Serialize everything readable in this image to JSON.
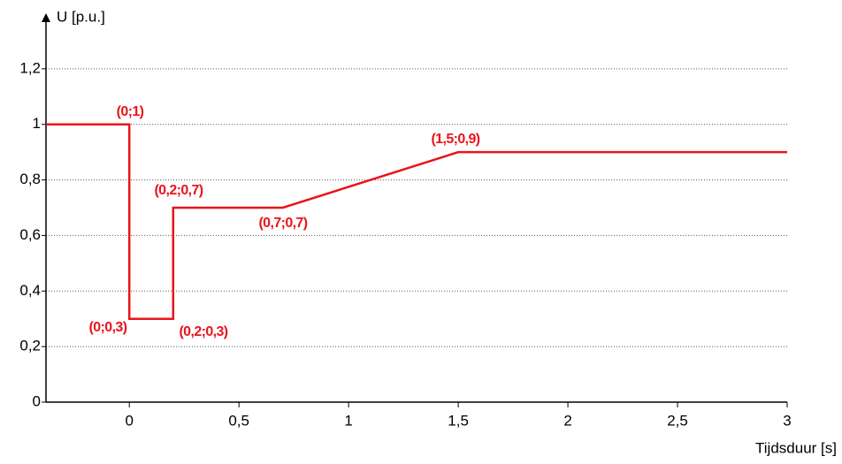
{
  "chart_data": {
    "type": "line",
    "y_label": "U [p.u.]",
    "x_label": "Tijdsduur [s]",
    "x": [
      -0.38,
      0,
      0,
      0.2,
      0.2,
      0.7,
      1.5,
      3
    ],
    "values": [
      1,
      1,
      0.3,
      0.3,
      0.7,
      0.7,
      0.9,
      0.9
    ],
    "color": "#e8141c",
    "xlim": [
      -0.38,
      3
    ],
    "ylim": [
      0,
      1.4
    ],
    "xticks": [
      0,
      {
        "value": 0.5,
        "label": "0,5"
      },
      1,
      {
        "value": 1.5,
        "label": "1,5"
      },
      2,
      {
        "value": 2.5,
        "label": "2,5"
      },
      3
    ],
    "yticks": [
      0,
      {
        "value": 0.2,
        "label": "0,2"
      },
      {
        "value": 0.4,
        "label": "0,4"
      },
      {
        "value": 0.6,
        "label": "0,6"
      },
      {
        "value": 0.8,
        "label": "0,8"
      },
      1,
      {
        "value": 1.2,
        "label": "1,2"
      }
    ],
    "grid": true,
    "annotations": [
      "(0;1)",
      "(0,2;0,7)",
      "(0,7;0,7)",
      "(1,5;0,9)",
      "(0;0,3)",
      "(0,2;0,3)"
    ]
  }
}
